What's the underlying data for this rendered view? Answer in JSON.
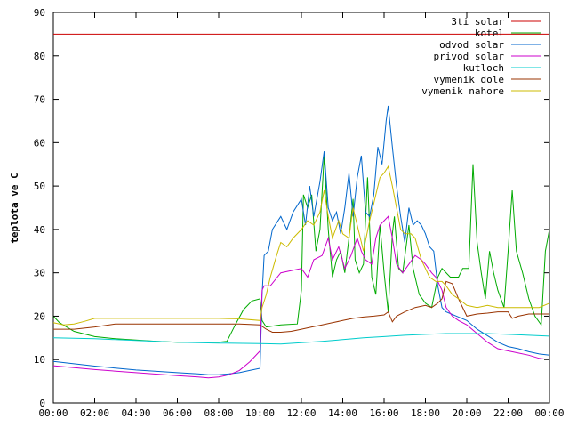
{
  "chart_data": {
    "type": "line",
    "ylabel": "teplota ve C",
    "xlabel": "",
    "ylim": [
      0,
      90
    ],
    "y_ticks": [
      0,
      10,
      20,
      30,
      40,
      50,
      60,
      70,
      80,
      90
    ],
    "xlim": [
      0,
      24
    ],
    "x_ticks": [
      "00:00",
      "02:00",
      "04:00",
      "06:00",
      "08:00",
      "10:00",
      "12:00",
      "14:00",
      "16:00",
      "18:00",
      "20:00",
      "22:00",
      "00:00"
    ],
    "grid": false,
    "legend_position": "top-right",
    "series": [
      {
        "name": "3ti solar",
        "color": "#cc0000",
        "points": [
          [
            0,
            85
          ],
          [
            24,
            85
          ]
        ]
      },
      {
        "name": "kotel",
        "color": "#00aa00",
        "points": [
          [
            0,
            20
          ],
          [
            0.3,
            18.5
          ],
          [
            1,
            16.5
          ],
          [
            2,
            15.3
          ],
          [
            3,
            14.8
          ],
          [
            4,
            14.5
          ],
          [
            5,
            14.2
          ],
          [
            6,
            14
          ],
          [
            7,
            14
          ],
          [
            8,
            14
          ],
          [
            8.4,
            14.2
          ],
          [
            8.8,
            18
          ],
          [
            9.2,
            21.5
          ],
          [
            9.6,
            23.5
          ],
          [
            10,
            24
          ],
          [
            10.1,
            19
          ],
          [
            10.3,
            17.5
          ],
          [
            11,
            18
          ],
          [
            11.8,
            18.2
          ],
          [
            12,
            26
          ],
          [
            12.1,
            48
          ],
          [
            12.3,
            45
          ],
          [
            12.5,
            48
          ],
          [
            12.7,
            35
          ],
          [
            12.9,
            40
          ],
          [
            13.1,
            57
          ],
          [
            13.3,
            40
          ],
          [
            13.5,
            29
          ],
          [
            13.7,
            33
          ],
          [
            13.9,
            35
          ],
          [
            14.1,
            30
          ],
          [
            14.3,
            38
          ],
          [
            14.5,
            47
          ],
          [
            14.6,
            33
          ],
          [
            14.8,
            30
          ],
          [
            15,
            32
          ],
          [
            15.2,
            52
          ],
          [
            15.4,
            29
          ],
          [
            15.6,
            25
          ],
          [
            15.8,
            41
          ],
          [
            16,
            30
          ],
          [
            16.2,
            21
          ],
          [
            16.4,
            39
          ],
          [
            16.5,
            43
          ],
          [
            16.7,
            31
          ],
          [
            16.9,
            30
          ],
          [
            17.2,
            41
          ],
          [
            17.4,
            31
          ],
          [
            17.7,
            25
          ],
          [
            18,
            23
          ],
          [
            18.3,
            22
          ],
          [
            18.6,
            29
          ],
          [
            18.8,
            31
          ],
          [
            19.2,
            29
          ],
          [
            19.6,
            29
          ],
          [
            19.8,
            31
          ],
          [
            20.1,
            31
          ],
          [
            20.3,
            55
          ],
          [
            20.5,
            37
          ],
          [
            20.7,
            30
          ],
          [
            20.9,
            24
          ],
          [
            21.1,
            35
          ],
          [
            21.3,
            30
          ],
          [
            21.5,
            26
          ],
          [
            21.8,
            22
          ],
          [
            22,
            35
          ],
          [
            22.2,
            49
          ],
          [
            22.4,
            35
          ],
          [
            22.7,
            30
          ],
          [
            23,
            24
          ],
          [
            23.3,
            20
          ],
          [
            23.6,
            18
          ],
          [
            23.8,
            35
          ],
          [
            24,
            40
          ]
        ]
      },
      {
        "name": "odvod solar",
        "color": "#0066cc",
        "points": [
          [
            0,
            9.6
          ],
          [
            2,
            8.5
          ],
          [
            4,
            7.6
          ],
          [
            6,
            7
          ],
          [
            7,
            6.7
          ],
          [
            7.5,
            6.5
          ],
          [
            8,
            6.5
          ],
          [
            8.5,
            6.7
          ],
          [
            9,
            7
          ],
          [
            9.5,
            7.5
          ],
          [
            10,
            8
          ],
          [
            10.1,
            25
          ],
          [
            10.2,
            34
          ],
          [
            10.4,
            35
          ],
          [
            10.6,
            40
          ],
          [
            11,
            43
          ],
          [
            11.3,
            40
          ],
          [
            11.6,
            44
          ],
          [
            12,
            47
          ],
          [
            12.2,
            41
          ],
          [
            12.4,
            50
          ],
          [
            12.6,
            43
          ],
          [
            12.9,
            51
          ],
          [
            13.1,
            58
          ],
          [
            13.3,
            45
          ],
          [
            13.5,
            42
          ],
          [
            13.7,
            44
          ],
          [
            13.9,
            39
          ],
          [
            14.1,
            45
          ],
          [
            14.3,
            53
          ],
          [
            14.5,
            43
          ],
          [
            14.7,
            52
          ],
          [
            14.9,
            57
          ],
          [
            15.1,
            44
          ],
          [
            15.3,
            43
          ],
          [
            15.5,
            48
          ],
          [
            15.7,
            59
          ],
          [
            15.9,
            55
          ],
          [
            16.1,
            65
          ],
          [
            16.2,
            68.5
          ],
          [
            16.4,
            59
          ],
          [
            16.6,
            50
          ],
          [
            16.8,
            43
          ],
          [
            17,
            37
          ],
          [
            17.2,
            45
          ],
          [
            17.4,
            41
          ],
          [
            17.6,
            42
          ],
          [
            17.8,
            41
          ],
          [
            18,
            39
          ],
          [
            18.2,
            36
          ],
          [
            18.4,
            35
          ],
          [
            18.6,
            27
          ],
          [
            18.8,
            22
          ],
          [
            19,
            21
          ],
          [
            19.5,
            20
          ],
          [
            20,
            19
          ],
          [
            20.5,
            17
          ],
          [
            21,
            15.5
          ],
          [
            21.5,
            14
          ],
          [
            22,
            13
          ],
          [
            22.5,
            12.5
          ],
          [
            23,
            11.8
          ],
          [
            23.5,
            11.3
          ],
          [
            24,
            11
          ]
        ]
      },
      {
        "name": "privod solar",
        "color": "#cc00cc",
        "points": [
          [
            0,
            8.6
          ],
          [
            2,
            7.7
          ],
          [
            4,
            7
          ],
          [
            6,
            6.3
          ],
          [
            7,
            6
          ],
          [
            7.5,
            5.8
          ],
          [
            8,
            6
          ],
          [
            8.5,
            6.5
          ],
          [
            9,
            7.5
          ],
          [
            9.5,
            9.5
          ],
          [
            10,
            12
          ],
          [
            10.1,
            26
          ],
          [
            10.2,
            27
          ],
          [
            10.5,
            27
          ],
          [
            11,
            30
          ],
          [
            11.5,
            30.5
          ],
          [
            12,
            31
          ],
          [
            12.3,
            29
          ],
          [
            12.6,
            33
          ],
          [
            13,
            34
          ],
          [
            13.3,
            38
          ],
          [
            13.5,
            33
          ],
          [
            13.8,
            36
          ],
          [
            14.1,
            31
          ],
          [
            14.4,
            34
          ],
          [
            14.7,
            38
          ],
          [
            14.9,
            35
          ],
          [
            15.1,
            33
          ],
          [
            15.4,
            32
          ],
          [
            15.6,
            38
          ],
          [
            15.8,
            41
          ],
          [
            16,
            42
          ],
          [
            16.2,
            43
          ],
          [
            16.4,
            38
          ],
          [
            16.6,
            32
          ],
          [
            16.9,
            30
          ],
          [
            17.2,
            32
          ],
          [
            17.5,
            34
          ],
          [
            17.8,
            33
          ],
          [
            18,
            32
          ],
          [
            18.3,
            30
          ],
          [
            18.5,
            29
          ],
          [
            18.8,
            26
          ],
          [
            19,
            22
          ],
          [
            19.3,
            20
          ],
          [
            19.6,
            19
          ],
          [
            20,
            18
          ],
          [
            20.5,
            16
          ],
          [
            21,
            14
          ],
          [
            21.5,
            12.5
          ],
          [
            22,
            12
          ],
          [
            22.5,
            11.5
          ],
          [
            23,
            11
          ],
          [
            23.5,
            10.3
          ],
          [
            24,
            10
          ]
        ]
      },
      {
        "name": "kutloch",
        "color": "#00cccc",
        "points": [
          [
            0,
            15
          ],
          [
            2,
            14.8
          ],
          [
            4,
            14.4
          ],
          [
            6,
            14
          ],
          [
            8,
            13.8
          ],
          [
            10,
            13.7
          ],
          [
            11,
            13.6
          ],
          [
            12,
            13.9
          ],
          [
            13,
            14.2
          ],
          [
            14,
            14.6
          ],
          [
            15,
            15
          ],
          [
            16,
            15.3
          ],
          [
            17,
            15.6
          ],
          [
            18,
            15.8
          ],
          [
            19,
            16
          ],
          [
            20,
            16
          ],
          [
            21,
            16
          ],
          [
            22,
            15.8
          ],
          [
            23,
            15.6
          ],
          [
            24,
            15.4
          ]
        ]
      },
      {
        "name": "vymenik dole",
        "color": "#993300",
        "points": [
          [
            0,
            17
          ],
          [
            1,
            17
          ],
          [
            2,
            17.5
          ],
          [
            3,
            18.2
          ],
          [
            5,
            18.2
          ],
          [
            7,
            18.2
          ],
          [
            9,
            18.2
          ],
          [
            10,
            18
          ],
          [
            10.3,
            17
          ],
          [
            10.6,
            16.3
          ],
          [
            11,
            16.3
          ],
          [
            11.5,
            16.5
          ],
          [
            12,
            17
          ],
          [
            12.5,
            17.5
          ],
          [
            13,
            18
          ],
          [
            13.5,
            18.5
          ],
          [
            14,
            19
          ],
          [
            14.5,
            19.5
          ],
          [
            15,
            19.8
          ],
          [
            15.5,
            20
          ],
          [
            16,
            20.3
          ],
          [
            16.2,
            21
          ],
          [
            16.4,
            18.7
          ],
          [
            16.6,
            20
          ],
          [
            17,
            21
          ],
          [
            17.5,
            22
          ],
          [
            18,
            22.5
          ],
          [
            18.3,
            22
          ],
          [
            18.6,
            23
          ],
          [
            18.8,
            24
          ],
          [
            19,
            28
          ],
          [
            19.3,
            27.5
          ],
          [
            19.6,
            24
          ],
          [
            20,
            20
          ],
          [
            20.5,
            20.5
          ],
          [
            21,
            20.7
          ],
          [
            21.5,
            21
          ],
          [
            22,
            21
          ],
          [
            22.2,
            19.5
          ],
          [
            22.5,
            20
          ],
          [
            23,
            20.5
          ],
          [
            23.5,
            20.5
          ],
          [
            24,
            20.5
          ]
        ]
      },
      {
        "name": "vymenik nahore",
        "color": "#ccbb00",
        "points": [
          [
            0,
            18.5
          ],
          [
            0.5,
            18
          ],
          [
            1,
            18.2
          ],
          [
            1.5,
            18.8
          ],
          [
            2,
            19.5
          ],
          [
            4,
            19.5
          ],
          [
            6,
            19.5
          ],
          [
            8,
            19.5
          ],
          [
            9,
            19.4
          ],
          [
            10,
            19
          ],
          [
            10.1,
            22
          ],
          [
            10.3,
            25
          ],
          [
            10.5,
            29
          ],
          [
            10.8,
            34
          ],
          [
            11,
            37
          ],
          [
            11.3,
            36
          ],
          [
            11.6,
            38
          ],
          [
            12,
            40
          ],
          [
            12.3,
            42
          ],
          [
            12.6,
            41
          ],
          [
            12.9,
            44
          ],
          [
            13.1,
            49
          ],
          [
            13.3,
            43
          ],
          [
            13.5,
            38
          ],
          [
            13.8,
            42
          ],
          [
            14,
            39
          ],
          [
            14.3,
            38
          ],
          [
            14.5,
            45
          ],
          [
            14.8,
            39
          ],
          [
            15,
            35
          ],
          [
            15.3,
            42
          ],
          [
            15.5,
            46
          ],
          [
            15.8,
            52
          ],
          [
            16,
            53
          ],
          [
            16.2,
            54.5
          ],
          [
            16.4,
            50
          ],
          [
            16.6,
            45
          ],
          [
            16.8,
            40
          ],
          [
            17,
            39
          ],
          [
            17.3,
            39
          ],
          [
            17.5,
            38
          ],
          [
            17.8,
            33
          ],
          [
            18,
            31
          ],
          [
            18.2,
            29
          ],
          [
            18.5,
            28
          ],
          [
            18.8,
            28
          ],
          [
            19,
            27
          ],
          [
            19.3,
            25
          ],
          [
            19.6,
            24
          ],
          [
            20,
            22.5
          ],
          [
            20.5,
            22
          ],
          [
            21,
            22.5
          ],
          [
            21.5,
            22
          ],
          [
            22,
            22
          ],
          [
            22.5,
            22
          ],
          [
            23,
            22
          ],
          [
            23.5,
            22
          ],
          [
            24,
            23
          ]
        ]
      }
    ]
  }
}
